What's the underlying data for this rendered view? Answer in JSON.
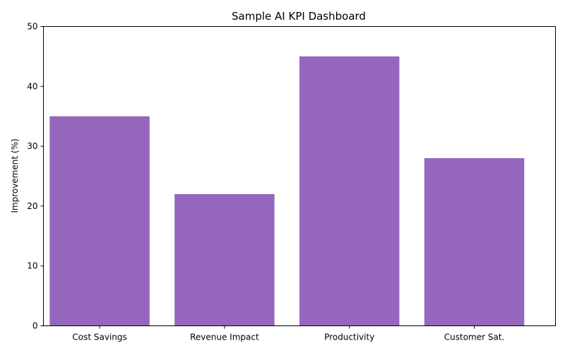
{
  "chart_data": {
    "type": "bar",
    "title": "Sample AI KPI Dashboard",
    "xlabel": "",
    "ylabel": "Improvement (%)",
    "categories": [
      "Cost Savings",
      "Revenue Impact",
      "Productivity",
      "Customer Sat."
    ],
    "values": [
      35,
      22,
      45,
      28
    ],
    "ylim": [
      0,
      50
    ],
    "yticks": [
      "0",
      "10",
      "20",
      "30",
      "40",
      "50"
    ],
    "grid": false,
    "legend": "none",
    "bar_color": "#9467bd"
  }
}
